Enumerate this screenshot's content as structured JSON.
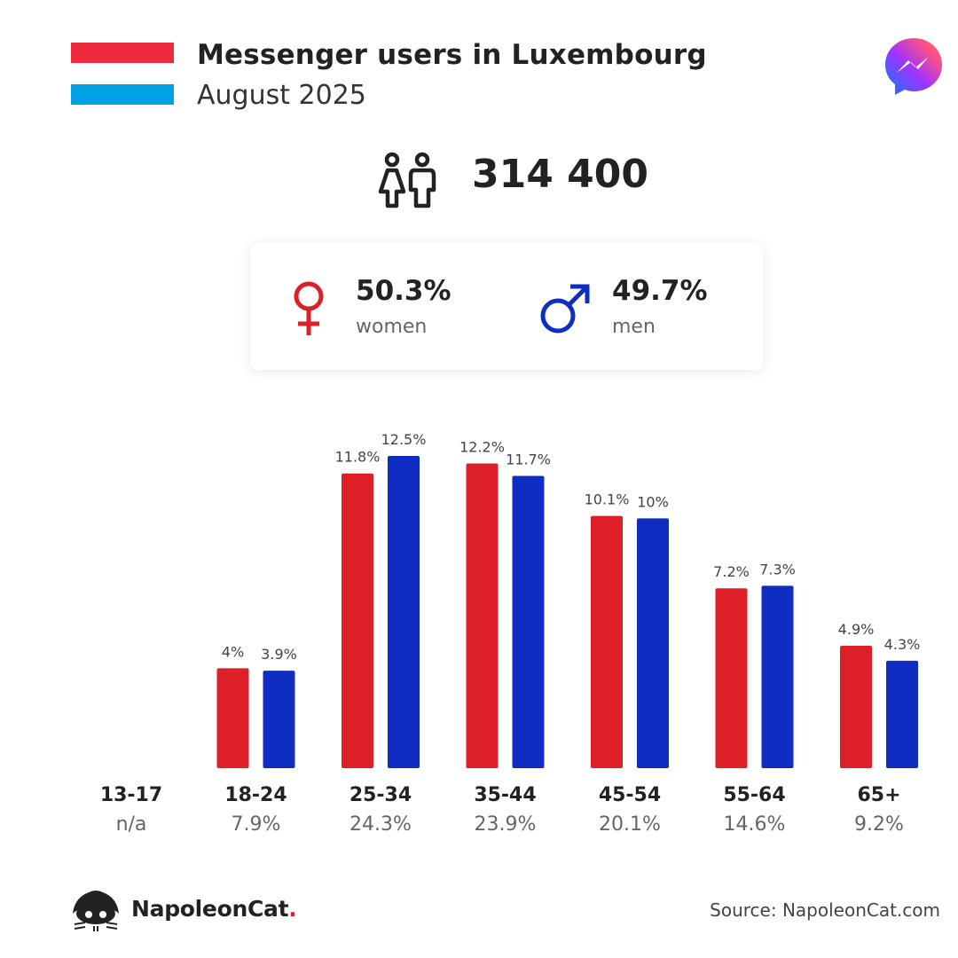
{
  "header": {
    "title": "Messenger users in Luxembourg",
    "subtitle": "August 2025"
  },
  "total_users": "314 400",
  "gender": {
    "women": {
      "pct": "50.3%",
      "label": "women"
    },
    "men": {
      "pct": "49.7%",
      "label": "men"
    }
  },
  "colors": {
    "women": "#dd1f27",
    "men": "#0f2dc2",
    "flag_red": "#ee2b3d",
    "flag_blue": "#00a1e2"
  },
  "chart_data": {
    "type": "bar",
    "categories": [
      "13-17",
      "18-24",
      "25-34",
      "35-44",
      "45-54",
      "55-64",
      "65+"
    ],
    "category_totals": [
      "n/a",
      "7.9%",
      "24.3%",
      "23.9%",
      "20.1%",
      "14.6%",
      "9.2%"
    ],
    "series": [
      {
        "name": "women",
        "values": [
          null,
          4,
          11.8,
          12.2,
          10.1,
          7.2,
          4.9
        ],
        "labels": [
          "",
          "4%",
          "11.8%",
          "12.2%",
          "10.1%",
          "7.2%",
          "4.9%"
        ]
      },
      {
        "name": "men",
        "values": [
          null,
          3.9,
          12.5,
          11.7,
          10,
          7.3,
          4.3
        ],
        "labels": [
          "",
          "3.9%",
          "12.5%",
          "11.7%",
          "10%",
          "7.3%",
          "4.3%"
        ]
      }
    ],
    "ylim": [
      0,
      12.5
    ]
  },
  "footer": {
    "brand": "NapoleonCat",
    "brand_dot": ".",
    "source": "Source: NapoleonCat.com"
  }
}
